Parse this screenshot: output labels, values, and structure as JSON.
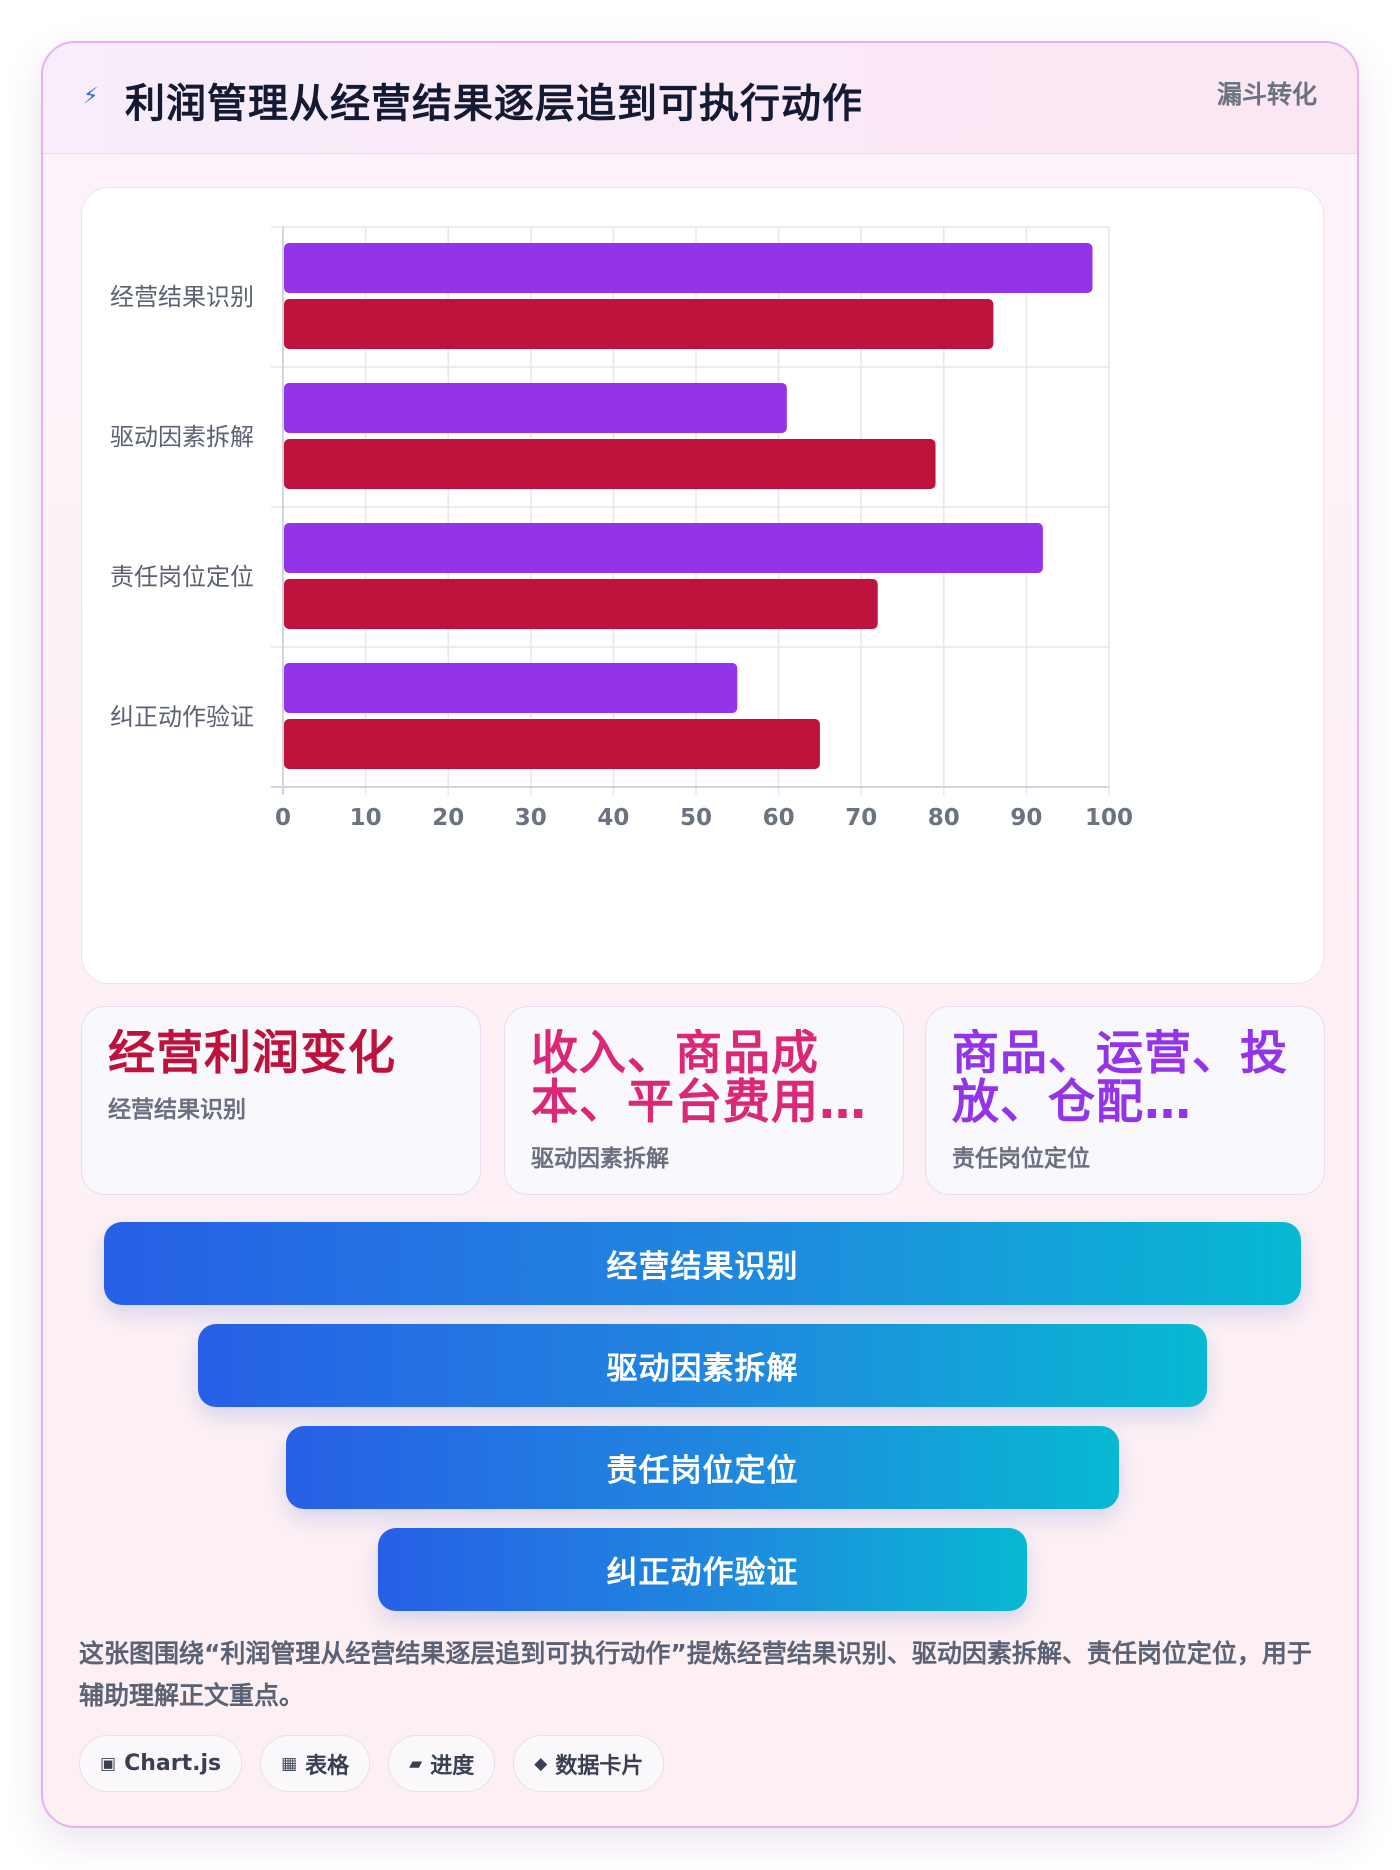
{
  "header": {
    "icon": "lightning-icon",
    "title": "利润管理从经营结果逐层追到可执行动作",
    "tag": "漏斗转化"
  },
  "chart_data": {
    "type": "bar",
    "orientation": "horizontal",
    "categories": [
      "经营结果识别",
      "驱动因素拆解",
      "责任岗位定位",
      "纠正动作验证"
    ],
    "series": [
      {
        "values": [
          98,
          61,
          92,
          55
        ],
        "color": "#9333ea"
      },
      {
        "values": [
          86,
          79,
          72,
          65
        ],
        "color": "#be123c"
      }
    ],
    "xlim": [
      0,
      100
    ],
    "xticks": [
      0,
      10,
      20,
      30,
      40,
      50,
      60,
      70,
      80,
      90,
      100
    ],
    "grid": true,
    "legend": "none"
  },
  "stats": [
    {
      "value": "经营利润变化",
      "label": "经营结果识别",
      "color": "#be123c"
    },
    {
      "value": "收入、商品成本、平台费用…",
      "label": "驱动因素拆解",
      "color": "#db2777"
    },
    {
      "value": "商品、运营、投放、仓配…",
      "label": "责任岗位定位",
      "color": "#9333ea"
    }
  ],
  "funnel": [
    "经营结果识别",
    "驱动因素拆解",
    "责任岗位定位",
    "纠正动作验证"
  ],
  "caption": "这张图围绕“利润管理从经营结果逐层追到可执行动作”提炼经营结果识别、驱动因素拆解、责任岗位定位，用于辅助理解正文重点。",
  "chips": [
    {
      "icon": "chart-icon",
      "glyph": "▣",
      "label": "Chart.js"
    },
    {
      "icon": "table-icon",
      "glyph": "▦",
      "label": "表格"
    },
    {
      "icon": "progress-icon",
      "glyph": "▰",
      "label": "进度"
    },
    {
      "icon": "data-card-icon",
      "glyph": "◆",
      "label": "数据卡片"
    }
  ]
}
